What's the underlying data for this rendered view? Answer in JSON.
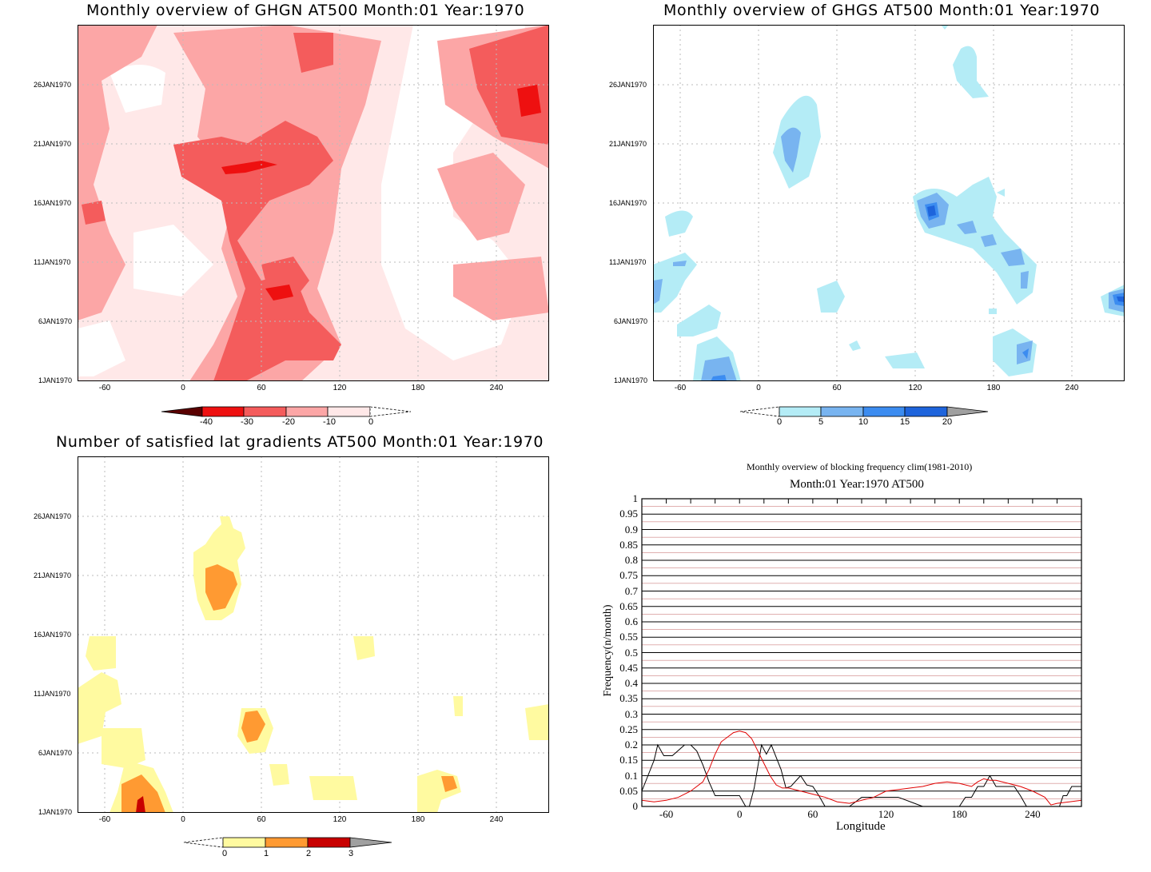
{
  "panels": {
    "ghgn": {
      "title": "Monthly overview of GHGN AT500 Month:01 Year:1970",
      "colorbar_ticks": [
        "-40",
        "-30",
        "-20",
        "-10",
        "0"
      ],
      "colors": {
        "l1": "#ffe8e8",
        "l2": "#fca6a6",
        "l3": "#f45c5c",
        "l4": "#ee1010",
        "l5": "#5a0000"
      }
    },
    "ghgs": {
      "title": "Monthly overview of GHGS AT500 Month:01 Year:1970",
      "colorbar_ticks": [
        "0",
        "5",
        "10",
        "15",
        "20"
      ],
      "colors": {
        "l1": "#b4ecf6",
        "l2": "#78b4f0",
        "l3": "#3c8cf0",
        "l4": "#1e64dc",
        "gray": "#a0a0a0"
      }
    },
    "lat": {
      "title": "Number of satisfied lat gradients AT500 Month:01 Year:1970",
      "colorbar_ticks": [
        "0",
        "1",
        "2",
        "3"
      ],
      "colors": {
        "l1": "#fffaa0",
        "l2": "#ff9a32",
        "l3": "#c80000",
        "gray": "#a0a0a0"
      }
    },
    "freq": {
      "suptitle": "Monthly overview of blocking frequency clim(1981-2010)",
      "title": "Month:01 Year:1970  AT500",
      "xlabel": "Longitude",
      "ylabel": "Frequency(n/month)"
    }
  },
  "time_ticks": [
    "26JAN1970",
    "21JAN1970",
    "16JAN1970",
    "11JAN1970",
    "6JAN1970",
    "1JAN1970"
  ],
  "lon_ticks": [
    "-60",
    "0",
    "60",
    "120",
    "180",
    "240"
  ],
  "freq_yticks": [
    "1",
    "0.95",
    "0.9",
    "0.85",
    "0.8",
    "0.75",
    "0.7",
    "0.65",
    "0.6",
    "0.55",
    "0.5",
    "0.45",
    "0.4",
    "0.35",
    "0.3",
    "0.25",
    "0.2",
    "0.15",
    "0.1",
    "0.05",
    "0"
  ],
  "chart_data": [
    {
      "type": "heatmap",
      "title": "Monthly overview of GHGN AT500 Month:01 Year:1970",
      "x_axis": "longitude",
      "xlim": [
        -80,
        280
      ],
      "y_axis": "time",
      "ylim": [
        "1JAN1970",
        "31JAN1970"
      ],
      "levels": [
        -40,
        -30,
        -20,
        -10,
        0
      ],
      "colorbar": [
        "<-40",
        "-40..-30",
        "-30..-20",
        "-20..-10",
        "-10..0",
        ">0"
      ]
    },
    {
      "type": "heatmap",
      "title": "Monthly overview of GHGS AT500 Month:01 Year:1970",
      "x_axis": "longitude",
      "xlim": [
        -80,
        280
      ],
      "y_axis": "time",
      "ylim": [
        "1JAN1970",
        "31JAN1970"
      ],
      "levels": [
        0,
        5,
        10,
        15,
        20
      ],
      "colorbar": [
        "<0",
        "0..5",
        "5..10",
        "10..15",
        "15..20",
        ">20"
      ]
    },
    {
      "type": "heatmap",
      "title": "Number of satisfied lat gradients AT500 Month:01 Year:1970",
      "x_axis": "longitude",
      "xlim": [
        -80,
        280
      ],
      "y_axis": "time",
      "ylim": [
        "1JAN1970",
        "31JAN1970"
      ],
      "levels": [
        0,
        1,
        2,
        3
      ],
      "colorbar": [
        "<0",
        "0..1",
        "1..2",
        "2..3",
        ">3"
      ]
    },
    {
      "type": "line",
      "suptitle": "Monthly overview of blocking frequency clim(1981-2010)",
      "title": "Month:01 Year:1970  AT500",
      "xlabel": "Longitude",
      "ylabel": "Frequency(n/month)",
      "xlim": [
        -80,
        280
      ],
      "ylim": [
        0,
        1
      ],
      "grid": true,
      "series": [
        {
          "color": "#000000",
          "x": [
            -80,
            -75,
            -70,
            -67,
            -62,
            -55,
            -45,
            -40,
            -35,
            -30,
            -25,
            -20,
            -15,
            -10,
            -5,
            0,
            5,
            8,
            12,
            18,
            22,
            26,
            30,
            34,
            38,
            42,
            50,
            55,
            60,
            65,
            70,
            80,
            90,
            100,
            110,
            130,
            150,
            160,
            170,
            180,
            185,
            190,
            195,
            200,
            205,
            210,
            215,
            220,
            225,
            230,
            235,
            240,
            250,
            262,
            265,
            268,
            272,
            276,
            280
          ],
          "y": [
            0.05,
            0.1,
            0.15,
            0.2,
            0.165,
            0.165,
            0.2,
            0.2,
            0.18,
            0.135,
            0.08,
            0.035,
            0.035,
            0.035,
            0.035,
            0.035,
            0.0,
            0.0,
            0.06,
            0.2,
            0.17,
            0.2,
            0.16,
            0.12,
            0.06,
            0.065,
            0.1,
            0.07,
            0.065,
            0.035,
            0.0,
            0.0,
            0.0,
            0.03,
            0.03,
            0.03,
            0.0,
            0.0,
            0.0,
            0.0,
            0.03,
            0.03,
            0.065,
            0.065,
            0.1,
            0.065,
            0.065,
            0.065,
            0.065,
            0.035,
            0.0,
            0.0,
            0.0,
            0.0,
            0.035,
            0.035,
            0.065,
            0.065,
            0.065
          ]
        },
        {
          "color": "#e00000",
          "x": [
            -80,
            -70,
            -60,
            -50,
            -40,
            -30,
            -25,
            -20,
            -15,
            -10,
            -5,
            0,
            5,
            10,
            15,
            20,
            25,
            30,
            35,
            40,
            50,
            60,
            70,
            80,
            90,
            100,
            110,
            120,
            130,
            140,
            150,
            160,
            170,
            180,
            190,
            195,
            200,
            205,
            210,
            220,
            230,
            240,
            250,
            255,
            260,
            270,
            280
          ],
          "y": [
            0.02,
            0.015,
            0.02,
            0.03,
            0.05,
            0.08,
            0.12,
            0.17,
            0.21,
            0.225,
            0.24,
            0.245,
            0.24,
            0.22,
            0.18,
            0.14,
            0.1,
            0.07,
            0.06,
            0.06,
            0.05,
            0.04,
            0.03,
            0.015,
            0.01,
            0.02,
            0.03,
            0.05,
            0.055,
            0.06,
            0.065,
            0.075,
            0.08,
            0.075,
            0.065,
            0.08,
            0.09,
            0.085,
            0.085,
            0.075,
            0.065,
            0.05,
            0.03,
            0.005,
            0.01,
            0.015,
            0.02
          ]
        }
      ]
    }
  ]
}
